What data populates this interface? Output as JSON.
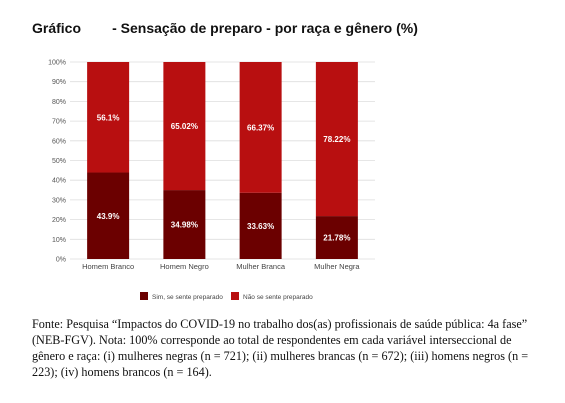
{
  "chart_data": {
    "type": "bar",
    "stacked": true,
    "percent_stacked": true,
    "title": "Gráfico        - Sensação de preparo - por raça e gênero (%)",
    "categories": [
      "Homem Branco",
      "Homem Negro",
      "Mulher Branca",
      "Mulher Negra"
    ],
    "series": [
      {
        "name": "Sim, se sente preparado",
        "values": [
          43.9,
          34.98,
          33.63,
          21.78
        ],
        "labels": [
          "43.9%",
          "34.98%",
          "33.63%",
          "21.78%"
        ],
        "color": "#6b0000"
      },
      {
        "name": "Não se sente preparado",
        "values": [
          56.1,
          65.02,
          66.37,
          78.22
        ],
        "labels": [
          "56.1%",
          "65.02%",
          "66.37%",
          "78.22%"
        ],
        "color": "#b80f10"
      }
    ],
    "yticks": [
      "0%",
      "10%",
      "20%",
      "30%",
      "40%",
      "50%",
      "60%",
      "70%",
      "80%",
      "90%",
      "100%"
    ],
    "ylim": [
      0,
      100
    ],
    "grid": true,
    "legend_position": "bottom"
  },
  "source_note": "Fonte: Pesquisa “Impactos do COVID-19 no trabalho dos(as) profissionais de saúde pública: 4a fase” (NEB-FGV). Nota: 100% corresponde ao total de respondentes em cada variável interseccional de gênero e raça: (i) mulheres negras (n = 721); (ii) mulheres brancas (n = 672); (iii) homens negros (n = 223); (iv) homens brancos (n = 164)."
}
